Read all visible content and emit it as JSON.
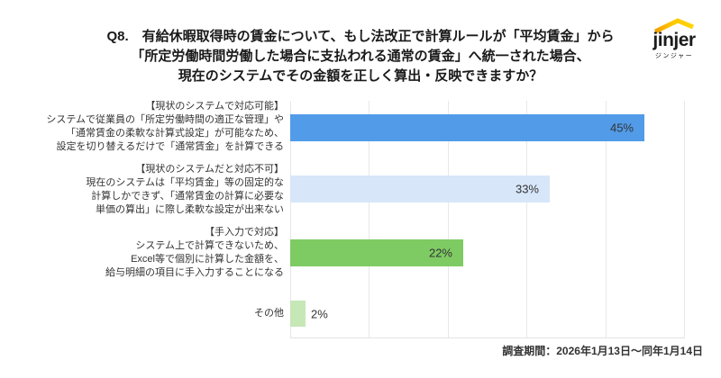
{
  "page": {
    "background": "#FFFFFF"
  },
  "logo": {
    "brand": "jinjer",
    "subtitle": "ジンジャー",
    "roof_color_left": "#F29E00",
    "roof_color_right": "#FFD400"
  },
  "title": {
    "lines": [
      "Q8.　有給休暇取得時の賃金について、もし法改正で計算ルールが「平均賃金」から",
      "「所定労働時間労働した場合に支払われる通常の賃金」へ統一された場合、",
      "現在のシステムでその金額を正しく算出・反映できますか？"
    ]
  },
  "footer": {
    "survey_period": "調査期間：2026年1月13日～同年1月14日"
  },
  "chart_data": {
    "type": "bar",
    "orientation": "horizontal",
    "title": "Q8. 有給休暇取得時の賃金について、もし法改正で計算ルールが「平均賃金」から「所定労働時間労働した場合に支払われる通常の賃金」へ統一された場合、現在のシステムでその金額を正しく算出・反映できますか？",
    "xlabel": "",
    "ylabel": "",
    "xlim": [
      0,
      50
    ],
    "grid": true,
    "gridline_step": 10,
    "values": [
      45,
      33,
      22,
      2
    ],
    "categories": [
      {
        "lines": [
          "【現状のシステムで対応可能】",
          "システムで従業員の「所定労働時間の適正な管理」や",
          "「通常賃金の柔軟な計算式設定」が可能なため、",
          "設定を切り替えるだけで「通常賃金」を計算できる"
        ],
        "value": 45,
        "value_label": "45%",
        "color": "#529BE8",
        "label_inside": true
      },
      {
        "lines": [
          "【現状のシステムだと対応不可】",
          "現在のシステムは「平均賃金」等の固定的な",
          "計算しかできず、「通常賃金の計算に必要な",
          "単価の算出」に際し柔軟な設定が出来ない"
        ],
        "value": 33,
        "value_label": "33%",
        "color": "#D7E6F9",
        "label_inside": true
      },
      {
        "lines": [
          "【手入力で対応】",
          "システム上で計算できないため、",
          "Excel等で個別に計算した金額を、",
          "給与明細の項目に手入力することになる"
        ],
        "value": 22,
        "value_label": "22%",
        "color": "#7ECB64",
        "label_inside": true
      },
      {
        "lines": [
          "その他"
        ],
        "value": 2,
        "value_label": "2%",
        "color": "#C6E7B6",
        "label_inside": false
      }
    ]
  }
}
